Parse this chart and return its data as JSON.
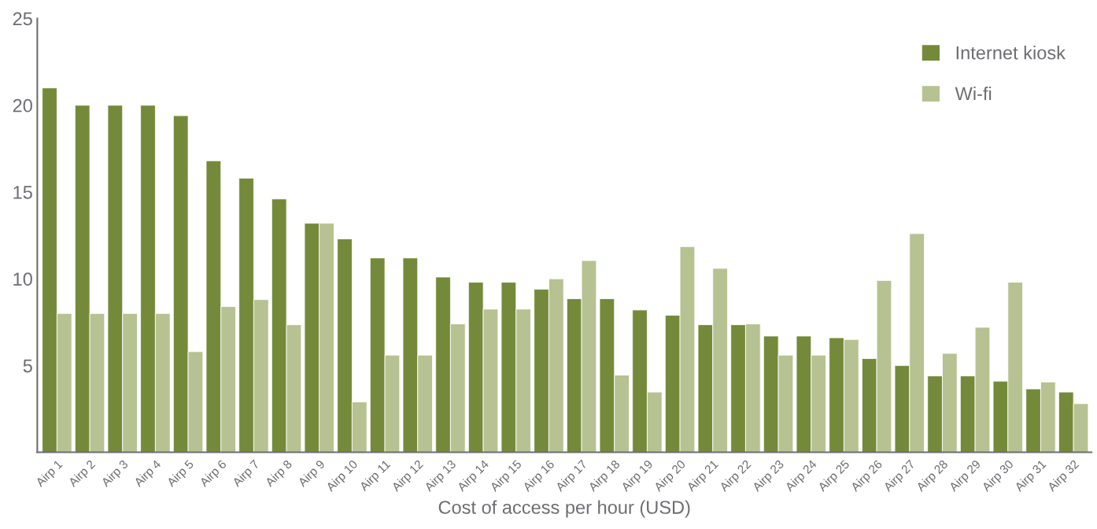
{
  "chart_data": {
    "type": "bar",
    "xlabel": "Cost of access per hour (USD)",
    "categories": [
      "Airp 1",
      "Airp 2",
      "Airp 3",
      "Airp 4",
      "Airp 5",
      "Airp 6",
      "Airp 7",
      "Airp 8",
      "Airp 9",
      "Airp 10",
      "Airp 11",
      "Airp 12",
      "Airp 13",
      "Airp 14",
      "Airp 15",
      "Airp 16",
      "Airp 17",
      "Airp 18",
      "Airp 19",
      "Airp 20",
      "Airp 21",
      "Airp 22",
      "Airp 23",
      "Airp 24",
      "Airp 25",
      "Airp 26",
      "Airp 27",
      "Airp 28",
      "Airp 29",
      "Airp 30",
      "Airp 31",
      "Airp 32"
    ],
    "series": [
      {
        "name": "Internet kiosk",
        "color": "#748a3a",
        "values": [
          21,
          20,
          20,
          20,
          19.4,
          16.8,
          15.8,
          14.6,
          13.2,
          12.3,
          11.2,
          11.2,
          10.1,
          9.8,
          9.8,
          9.4,
          8.85,
          8.85,
          8.2,
          7.9,
          7.35,
          7.35,
          6.7,
          6.7,
          6.6,
          5.4,
          5.0,
          4.4,
          4.4,
          4.1,
          3.65,
          3.47
        ]
      },
      {
        "name": "Wi-fi",
        "color": "#b6c291",
        "values": [
          8,
          8,
          8,
          8,
          5.8,
          8.4,
          8.8,
          7.35,
          13.2,
          2.9,
          5.6,
          5.6,
          7.4,
          8.25,
          8.25,
          10.0,
          11.05,
          4.45,
          3.47,
          11.85,
          10.6,
          7.4,
          5.6,
          5.6,
          6.5,
          9.9,
          12.6,
          5.7,
          7.2,
          9.8,
          4.05,
          2.8
        ]
      }
    ],
    "ylim": [
      0,
      25
    ],
    "yticks": [
      5,
      10,
      15,
      20,
      25
    ],
    "grid": false,
    "legend": "top right"
  }
}
